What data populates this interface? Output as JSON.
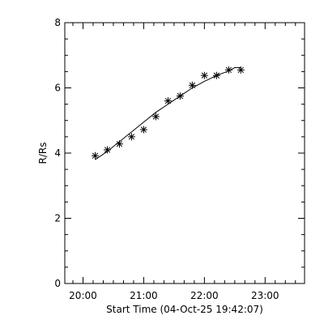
{
  "chart_data": {
    "type": "scatter",
    "title": "",
    "xlabel": "Start Time (04-Oct-25 19:42:07)",
    "ylabel": "R/Rs",
    "x_unit": "minutes",
    "xlim": [
      1182,
      1419
    ],
    "ylim": [
      0,
      8
    ],
    "x_major_ticks": [
      {
        "value": 1200,
        "label": "20:00"
      },
      {
        "value": 1260,
        "label": "21:00"
      },
      {
        "value": 1320,
        "label": "22:00"
      },
      {
        "value": 1380,
        "label": "23:00"
      }
    ],
    "x_minor_tick_step": 10,
    "y_major_ticks": [
      {
        "value": 0,
        "label": "0"
      },
      {
        "value": 2,
        "label": "2"
      },
      {
        "value": 4,
        "label": "4"
      },
      {
        "value": 6,
        "label": "6"
      },
      {
        "value": 8,
        "label": "8"
      }
    ],
    "y_minor_tick_step": 0.5,
    "grid": false,
    "series": [
      {
        "marker": "asterisk",
        "color": "#000000",
        "points": [
          {
            "x": 1212,
            "y": 3.92
          },
          {
            "x": 1224,
            "y": 4.1
          },
          {
            "x": 1236,
            "y": 4.28
          },
          {
            "x": 1248,
            "y": 4.5
          },
          {
            "x": 1260,
            "y": 4.72
          },
          {
            "x": 1272,
            "y": 5.12
          },
          {
            "x": 1284,
            "y": 5.6
          },
          {
            "x": 1296,
            "y": 5.75
          },
          {
            "x": 1308,
            "y": 6.08
          },
          {
            "x": 1320,
            "y": 6.38
          },
          {
            "x": 1332,
            "y": 6.38
          },
          {
            "x": 1344,
            "y": 6.55
          },
          {
            "x": 1356,
            "y": 6.55
          }
        ]
      },
      {
        "style": "line",
        "color": "#000000",
        "points": [
          {
            "x": 1212,
            "y": 3.8
          },
          {
            "x": 1224,
            "y": 4.05
          },
          {
            "x": 1236,
            "y": 4.35
          },
          {
            "x": 1248,
            "y": 4.65
          },
          {
            "x": 1260,
            "y": 4.95
          },
          {
            "x": 1272,
            "y": 5.25
          },
          {
            "x": 1284,
            "y": 5.5
          },
          {
            "x": 1296,
            "y": 5.75
          },
          {
            "x": 1308,
            "y": 6.0
          },
          {
            "x": 1320,
            "y": 6.2
          },
          {
            "x": 1332,
            "y": 6.38
          },
          {
            "x": 1344,
            "y": 6.52
          },
          {
            "x": 1350,
            "y": 6.62
          },
          {
            "x": 1356,
            "y": 6.62
          }
        ]
      }
    ]
  }
}
